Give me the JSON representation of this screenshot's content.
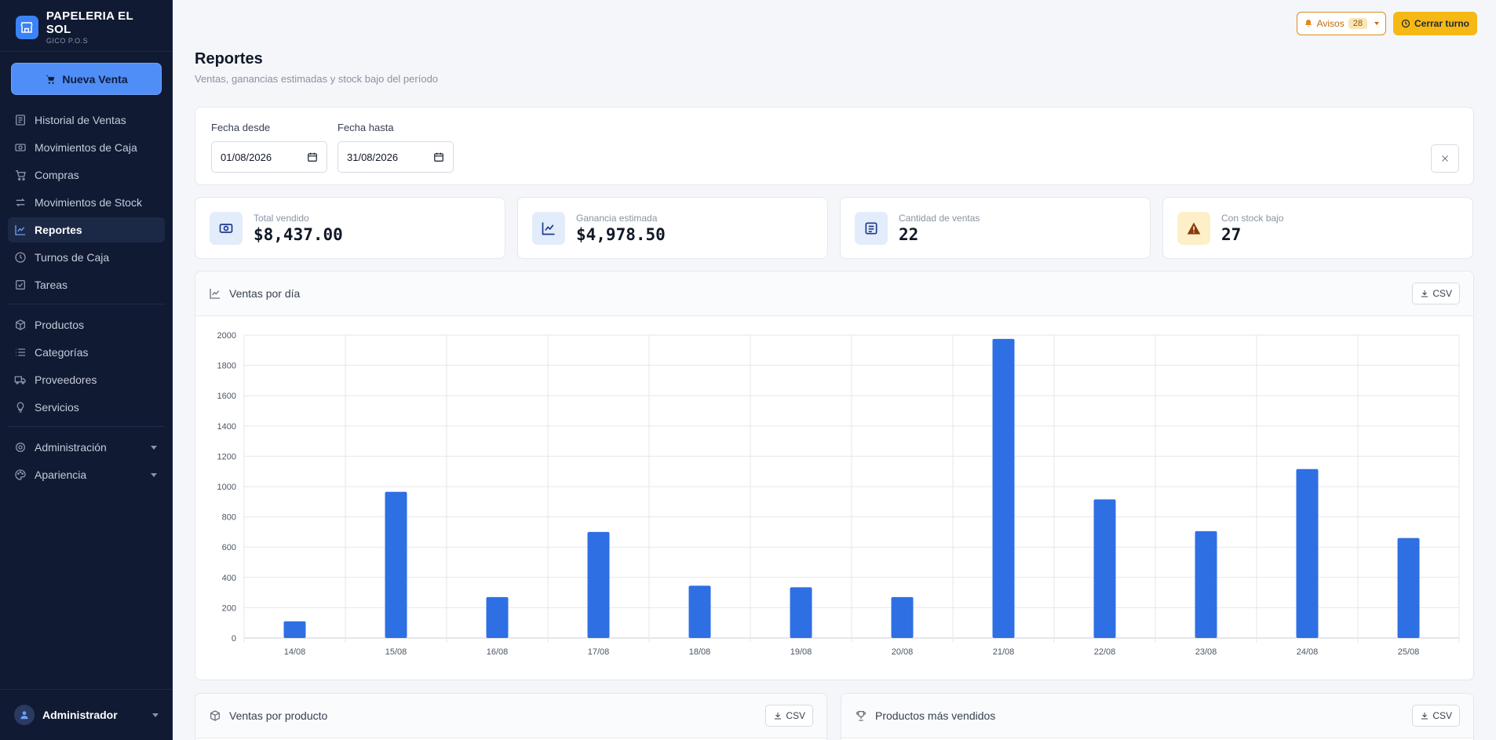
{
  "app": {
    "name": "PAPELERIA EL SOL",
    "subtitle": "GICO P.O.S"
  },
  "sidebar": {
    "new_sale": "Nueva Venta",
    "items": [
      {
        "label": "Historial de Ventas",
        "icon": "receipt-icon"
      },
      {
        "label": "Movimientos de Caja",
        "icon": "cash-icon"
      },
      {
        "label": "Compras",
        "icon": "cart-icon"
      },
      {
        "label": "Movimientos de Stock",
        "icon": "arrows-icon"
      },
      {
        "label": "Reportes",
        "icon": "chart-line-icon",
        "active": true
      },
      {
        "label": "Turnos de Caja",
        "icon": "clock-icon"
      },
      {
        "label": "Tareas",
        "icon": "checkbox-icon"
      },
      {
        "label": "Productos",
        "icon": "box-icon"
      },
      {
        "label": "Categorías",
        "icon": "list-icon"
      },
      {
        "label": "Proveedores",
        "icon": "truck-icon"
      },
      {
        "label": "Servicios",
        "icon": "bulb-icon"
      },
      {
        "label": "Administración",
        "icon": "gear-icon"
      },
      {
        "label": "Apariencia",
        "icon": "palette-icon"
      }
    ],
    "user": "Administrador"
  },
  "topbar": {
    "avisos_label": "Avisos",
    "avisos_count": "28",
    "cerrar_label": "Cerrar turno"
  },
  "page": {
    "title": "Reportes",
    "subtitle": "Ventas, ganancias estimadas y stock bajo del período"
  },
  "filters": {
    "desde_label": "Fecha desde",
    "desde_value": "01/08/2026",
    "hasta_label": "Fecha hasta",
    "hasta_value": "31/08/2026"
  },
  "stats": [
    {
      "label": "Total vendido",
      "value": "$8,437.00",
      "icon": "cash-icon",
      "color": "#e3ecfb"
    },
    {
      "label": "Ganancia estimada",
      "value": "$4,978.50",
      "icon": "chart-line-icon",
      "color": "#e3ecfb"
    },
    {
      "label": "Cantidad de ventas",
      "value": "22",
      "icon": "receipt-icon",
      "color": "#e3ecfb"
    },
    {
      "label": "Con stock bajo",
      "value": "27",
      "icon": "warning-icon",
      "color": "#fdf0c8"
    }
  ],
  "chart_card": {
    "title": "Ventas por día",
    "csv": "CSV"
  },
  "chart_data": {
    "type": "bar",
    "categories": [
      "14/08",
      "15/08",
      "16/08",
      "17/08",
      "18/08",
      "19/08",
      "20/08",
      "21/08",
      "22/08",
      "23/08",
      "24/08",
      "25/08"
    ],
    "values": [
      110,
      965,
      270,
      700,
      345,
      335,
      270,
      1975,
      915,
      705,
      1115,
      660
    ],
    "yticks": [
      "0",
      "200",
      "400",
      "600",
      "800",
      "1000",
      "1200",
      "1400",
      "1600",
      "1800",
      "2000"
    ],
    "ylim": [
      0,
      2000
    ],
    "color": "#2f6fe4",
    "grid": true
  },
  "bottom": {
    "left_title": "Ventas por producto",
    "right_title": "Productos más vendidos",
    "csv": "CSV"
  }
}
